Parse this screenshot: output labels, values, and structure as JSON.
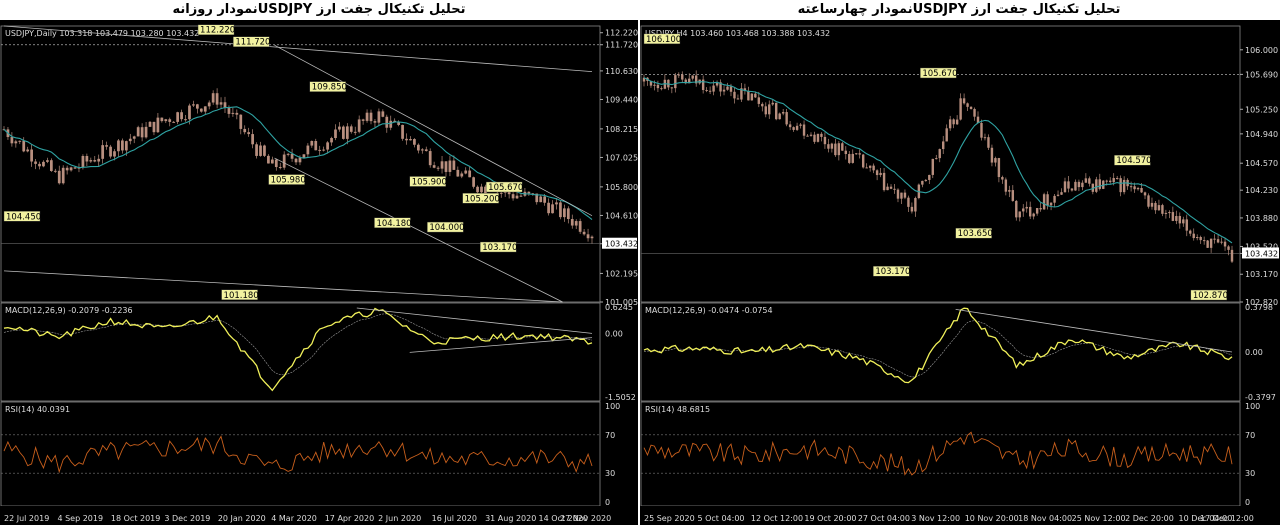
{
  "colors": {
    "background": "#000000",
    "candle": "#b88f7f",
    "ma": "#2fa3a3",
    "macd": "#f0f05a",
    "signal": "#9a9a9a",
    "rsi": "#c85f1c",
    "trend": "#bcbcbc",
    "label_bg": "#f2f2a0",
    "grid": "#555555"
  },
  "left": {
    "title": "تحلیل تکنیکال جفت ارز  USDJPYنمودار روزانه",
    "header": "USDJPY,Daily  103.318 103.479 103.280 103.432",
    "price_ticks": [
      "112.220",
      "111.720",
      "110.630",
      "109.440",
      "108.215",
      "107.025",
      "105.800",
      "104.610",
      "103.432",
      "102.195",
      "101.005"
    ],
    "macd_label": "MACD(12,26,9) -0.2079 -0.2236",
    "macd_ticks": [
      "0.6245",
      "0.00",
      "-1.5052"
    ],
    "rsi_label": "RSI(14) 40.0391",
    "rsi_ticks": [
      "100",
      "70",
      "30",
      "0"
    ],
    "x_ticks": [
      "22 Jul 2019",
      "4 Sep 2019",
      "18 Oct 2019",
      "3 Dec 2019",
      "20 Jan 2020",
      "4 Mar 2020",
      "17 Apr 2020",
      "2 Jun 2020",
      "16 Jul 2020",
      "31 Aug 2020",
      "14 Oct 2020",
      "27 Nov 2020"
    ],
    "annotations": [
      "112.220",
      "111.720",
      "109.850",
      "105.980",
      "105.900",
      "105.200",
      "104.180",
      "104.000",
      "105.670",
      "103.170",
      "104.450",
      "101.180"
    ]
  },
  "right": {
    "title": "تحلیل تکنیکال جفت ارز  USDJPYنمودار چهارساعته",
    "header": "USDJPY,H4  103.460 103.468 103.388 103.432",
    "price_ticks": [
      "106.000",
      "105.690",
      "105.250",
      "104.940",
      "104.570",
      "104.230",
      "103.880",
      "103.520",
      "103.432",
      "103.170",
      "102.820"
    ],
    "macd_label": "MACD(12,26,9) -0.0474 -0.0754",
    "macd_ticks": [
      "0.3798",
      "0.00",
      "-0.3797"
    ],
    "rsi_label": "RSI(14) 48.6815",
    "rsi_ticks": [
      "100",
      "70",
      "30",
      "0"
    ],
    "x_ticks": [
      "25 Sep 2020",
      "5 Oct 04:00",
      "12 Oct 12:00",
      "19 Oct 20:00",
      "27 Oct 04:00",
      "3 Nov 12:00",
      "10 Nov 20:00",
      "18 Nov 04:00",
      "25 Nov 12:00",
      "2 Dec 20:00",
      "10 Dec 04:00",
      "17 Dec 12:00"
    ],
    "annotations": [
      "106.100",
      "105.670",
      "104.570",
      "103.650",
      "103.170",
      "102.870"
    ]
  },
  "chart_data": [
    {
      "type": "line",
      "series_name": "USDJPY,Daily",
      "x": [
        "22 Jul 2019",
        "4 Sep 2019",
        "18 Oct 2019",
        "3 Dec 2019",
        "20 Jan 2020",
        "4 Mar 2020",
        "17 Apr 2020",
        "2 Jun 2020",
        "16 Jul 2020",
        "31 Aug 2020",
        "14 Oct 2020",
        "27 Nov 2020"
      ],
      "series": [
        {
          "values": [
            108.2,
            106.2,
            107.4,
            108.6,
            109.5,
            106.6,
            107.7,
            108.8,
            107.0,
            105.7,
            105.3,
            103.9
          ]
        }
      ],
      "ylim": [
        101.005,
        112.5
      ],
      "levels": [
        112.22,
        111.72,
        109.85,
        105.98,
        105.9,
        105.2,
        104.18,
        104.0,
        105.67,
        103.17,
        104.45,
        101.18
      ],
      "macd": [
        0.2,
        -0.1,
        0.3,
        0.1,
        0.4,
        -1.3,
        0.2,
        0.55,
        -0.2,
        -0.1,
        -0.05,
        -0.2
      ],
      "rsi": [
        55,
        40,
        52,
        56,
        60,
        35,
        52,
        60,
        45,
        44,
        46,
        40
      ]
    },
    {
      "type": "line",
      "series_name": "USDJPY,H4",
      "x": [
        "25 Sep 2020",
        "5 Oct 04:00",
        "12 Oct 12:00",
        "19 Oct 20:00",
        "27 Oct 04:00",
        "3 Nov 12:00",
        "10 Nov 20:00",
        "18 Nov 04:00",
        "25 Nov 12:00",
        "2 Dec 20:00",
        "10 Dec 04:00",
        "17 Dec 12:00"
      ],
      "series": [
        {
          "values": [
            105.6,
            105.6,
            105.4,
            105.0,
            104.6,
            104.0,
            105.4,
            103.9,
            104.3,
            104.3,
            103.8,
            103.4
          ]
        }
      ],
      "ylim": [
        102.82,
        106.3
      ],
      "levels": [
        106.1,
        105.67,
        104.57,
        103.65,
        103.17,
        102.87
      ],
      "macd": [
        0.02,
        0.03,
        0.0,
        0.05,
        -0.05,
        -0.25,
        0.38,
        -0.12,
        0.12,
        -0.05,
        0.07,
        -0.05
      ],
      "rsi": [
        55,
        52,
        48,
        56,
        48,
        35,
        70,
        42,
        56,
        45,
        52,
        48
      ]
    }
  ]
}
